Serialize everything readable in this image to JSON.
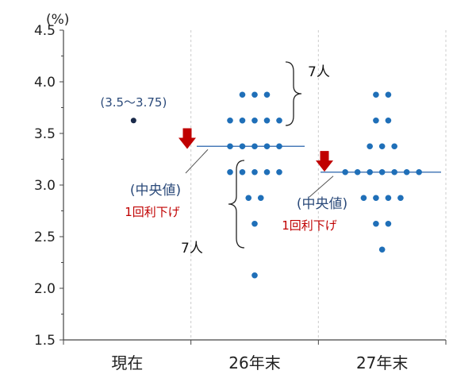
{
  "chart_data": {
    "type": "scatter",
    "ylabel": "(%)",
    "ylim": [
      1.5,
      4.5
    ],
    "yticks": [
      "4.5",
      "4.0",
      "3.5",
      "3.0",
      "2.5",
      "2.0",
      "1.5"
    ],
    "ytick_values": [
      4.5,
      4.0,
      3.5,
      3.0,
      2.5,
      2.0,
      1.5
    ],
    "categories": [
      "現在",
      "26年末",
      "27年末"
    ],
    "current": {
      "value": 3.625,
      "label": "(3.5～3.75)"
    },
    "dots_2026": [
      {
        "y": 3.875,
        "count": 3
      },
      {
        "y": 3.625,
        "count": 5
      },
      {
        "y": 3.375,
        "count": 5
      },
      {
        "y": 3.125,
        "count": 5
      },
      {
        "y": 2.875,
        "count": 2
      },
      {
        "y": 2.625,
        "count": 1
      },
      {
        "y": 2.125,
        "count": 1
      }
    ],
    "dots_2027": [
      {
        "y": 3.875,
        "count": 2
      },
      {
        "y": 3.625,
        "count": 2
      },
      {
        "y": 3.375,
        "count": 3
      },
      {
        "y": 3.125,
        "count": 7
      },
      {
        "y": 2.875,
        "count": 4
      },
      {
        "y": 2.625,
        "count": 2
      },
      {
        "y": 2.375,
        "count": 1
      }
    ],
    "median_2026": 3.375,
    "median_2027": 3.125,
    "annotations": {
      "seven_upper": "7人",
      "seven_lower": "7人",
      "median_label_1": "(中央値)",
      "cut_label_1": "1回利下げ",
      "median_label_2": "(中央値)",
      "cut_label_2": "1回利下げ"
    },
    "colors": {
      "dot": "#1f6fb8",
      "current_dot": "#1a2a4a",
      "median_line": "#4a7bb8",
      "arrow": "#c00000",
      "axis": "#444444",
      "grid": "#cccccc"
    }
  }
}
